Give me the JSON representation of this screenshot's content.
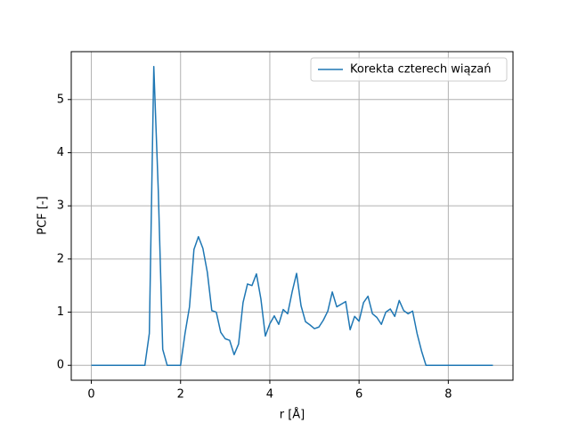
{
  "chart_data": {
    "type": "line",
    "xlabel": "r [Å]",
    "ylabel": "PCF [-]",
    "x": [
      0,
      0.1,
      0.2,
      0.3,
      0.4,
      0.5,
      0.6,
      0.7,
      0.8,
      0.9,
      1,
      1.1,
      1.2,
      1.3,
      1.4,
      1.5,
      1.6,
      1.7,
      1.8,
      1.9,
      2,
      2.1,
      2.2,
      2.3,
      2.4,
      2.5,
      2.6,
      2.7,
      2.8,
      2.9,
      3,
      3.1,
      3.2,
      3.3,
      3.4,
      3.5,
      3.6,
      3.7,
      3.8,
      3.9,
      4,
      4.1,
      4.2,
      4.3,
      4.4,
      4.5,
      4.6,
      4.7,
      4.8,
      4.9,
      5,
      5.1,
      5.2,
      5.3,
      5.4,
      5.5,
      5.6,
      5.7,
      5.8,
      5.9,
      6,
      6.1,
      6.2,
      6.3,
      6.4,
      6.5,
      6.6,
      6.7,
      6.8,
      6.9,
      7,
      7.1,
      7.2,
      7.3,
      7.4,
      7.5,
      7.6,
      7.7,
      7.8,
      7.9,
      8,
      8.1,
      8.2,
      8.3,
      8.4,
      8.5,
      8.6,
      8.7,
      8.8,
      8.9,
      9
    ],
    "series": [
      {
        "name": "Korekta czterech wiązań",
        "color": "#1f77b4",
        "values": [
          0,
          0,
          0,
          0,
          0,
          0,
          0,
          0,
          0,
          0,
          0,
          0,
          0,
          0.6,
          5.62,
          3.3,
          0.3,
          0,
          0,
          0,
          0,
          0.6,
          1.1,
          2.18,
          2.42,
          2.2,
          1.75,
          1.03,
          1.0,
          0.62,
          0.5,
          0.47,
          0.2,
          0.4,
          1.18,
          1.53,
          1.5,
          1.72,
          1.25,
          0.55,
          0.78,
          0.93,
          0.77,
          1.05,
          0.97,
          1.38,
          1.73,
          1.12,
          0.82,
          0.76,
          0.69,
          0.72,
          0.85,
          1.02,
          1.38,
          1.1,
          1.15,
          1.2,
          0.67,
          0.92,
          0.83,
          1.18,
          1.3,
          0.97,
          0.9,
          0.77,
          1.0,
          1.06,
          0.92,
          1.22,
          1.03,
          0.97,
          1.02,
          0.6,
          0.27,
          0,
          0,
          0,
          0,
          0,
          0,
          0,
          0,
          0,
          0,
          0,
          0,
          0,
          0,
          0,
          0
        ]
      }
    ],
    "xlim": [
      -0.45,
      9.45
    ],
    "ylim": [
      -0.281,
      5.901
    ],
    "xticks": [
      0,
      2,
      4,
      6,
      8
    ],
    "yticks": [
      0,
      1,
      2,
      3,
      4,
      5
    ],
    "grid": true,
    "legend": "upper right"
  }
}
